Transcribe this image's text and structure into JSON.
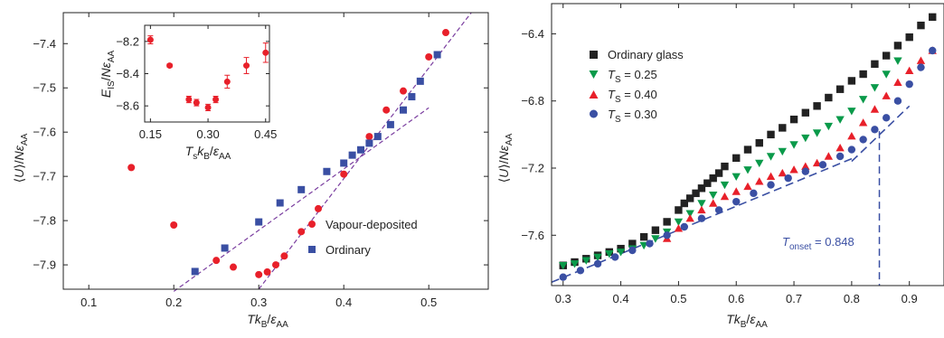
{
  "chart_data": [
    {
      "type": "scatter",
      "xlabel": "Tk_B/ε_AA",
      "ylabel": "⟨U⟩/Nε_AA",
      "xlim": [
        0.07,
        0.57
      ],
      "ylim": [
        -7.955,
        -7.33
      ],
      "xticks": [
        "0.1",
        "0.2",
        "0.3",
        "0.4",
        "0.5"
      ],
      "yticks": [
        "-7.4",
        "-7.5",
        "-7.6",
        "-7.7",
        "-7.8",
        "-7.9"
      ],
      "legend_position": "lower-right",
      "series": [
        {
          "name": "Vapour-deposited",
          "marker": "circle",
          "color": "#e8202a",
          "x": [
            0.15,
            0.2,
            0.25,
            0.27,
            0.3,
            0.31,
            0.32,
            0.33,
            0.35,
            0.37,
            0.4,
            0.43,
            0.45,
            0.47,
            0.5,
            0.52
          ],
          "y": [
            -7.68,
            -7.81,
            -7.89,
            -7.905,
            -7.922,
            -7.916,
            -7.9,
            -7.88,
            -7.825,
            -7.773,
            -7.695,
            -7.61,
            -7.55,
            -7.507,
            -7.43,
            -7.375
          ]
        },
        {
          "name": "Ordinary",
          "marker": "square",
          "color": "#3a4fa3",
          "x": [
            0.225,
            0.26,
            0.3,
            0.325,
            0.35,
            0.38,
            0.4,
            0.41,
            0.42,
            0.43,
            0.44,
            0.455,
            0.47,
            0.48,
            0.49,
            0.51
          ],
          "y": [
            -7.915,
            -7.862,
            -7.803,
            -7.76,
            -7.73,
            -7.689,
            -7.67,
            -7.652,
            -7.64,
            -7.625,
            -7.61,
            -7.583,
            -7.55,
            -7.52,
            -7.485,
            -7.425
          ]
        }
      ],
      "fit_lines": [
        {
          "x": [
            0.2,
            0.5
          ],
          "y": [
            -7.96,
            -7.545
          ],
          "color": "#7b3fa0"
        },
        {
          "x": [
            0.3,
            0.55
          ],
          "y": [
            -7.955,
            -7.33
          ],
          "color": "#7b3fa0"
        }
      ],
      "inset": {
        "type": "scatter",
        "xlabel": "T_s k_B/ε_AA",
        "ylabel": "E_IS/Nε_AA",
        "xlim": [
          0.135,
          0.46
        ],
        "ylim": [
          -8.7,
          -8.1
        ],
        "xticks": [
          "0.15",
          "0.30",
          "0.45"
        ],
        "yticks": [
          "-8.2",
          "-8.4",
          "-8.6"
        ],
        "series": [
          {
            "marker": "circle",
            "color": "#e8202a",
            "x": [
              0.15,
              0.2,
              0.25,
              0.27,
              0.3,
              0.32,
              0.35,
              0.4,
              0.45
            ],
            "y": [
              -8.19,
              -8.35,
              -8.56,
              -8.58,
              -8.61,
              -8.56,
              -8.45,
              -8.35,
              -8.27
            ],
            "err": [
              0.025,
              0.01,
              0.02,
              0.02,
              0.02,
              0.02,
              0.04,
              0.05,
              0.06
            ]
          }
        ]
      }
    },
    {
      "type": "scatter",
      "xlabel": "Tk_B/ε_AA",
      "ylabel": "⟨U⟩/Nε_AA",
      "xlim": [
        0.28,
        0.96
      ],
      "ylim": [
        -7.9,
        -6.22
      ],
      "xticks": [
        "0.3",
        "0.4",
        "0.5",
        "0.6",
        "0.7",
        "0.8",
        "0.9"
      ],
      "yticks": [
        "-6.4",
        "-6.8",
        "-7.2",
        "-7.6"
      ],
      "legend_position": "upper-left",
      "series": [
        {
          "name": "Ordinary glass",
          "marker": "square",
          "color": "#222222",
          "x": [
            0.3,
            0.32,
            0.34,
            0.36,
            0.38,
            0.4,
            0.42,
            0.44,
            0.46,
            0.48,
            0.5,
            0.51,
            0.52,
            0.53,
            0.54,
            0.55,
            0.56,
            0.57,
            0.58,
            0.6,
            0.62,
            0.64,
            0.66,
            0.68,
            0.7,
            0.72,
            0.74,
            0.76,
            0.78,
            0.8,
            0.82,
            0.84,
            0.86,
            0.88,
            0.9,
            0.92,
            0.94,
            0.96
          ],
          "y": [
            -7.78,
            -7.76,
            -7.74,
            -7.72,
            -7.7,
            -7.68,
            -7.65,
            -7.61,
            -7.57,
            -7.52,
            -7.45,
            -7.41,
            -7.38,
            -7.35,
            -7.32,
            -7.29,
            -7.26,
            -7.23,
            -7.19,
            -7.14,
            -7.09,
            -7.05,
            -7.0,
            -6.96,
            -6.91,
            -6.87,
            -6.83,
            -6.78,
            -6.73,
            -6.68,
            -6.64,
            -6.58,
            -6.53,
            -6.47,
            -6.42,
            -6.35,
            -6.3,
            -6.25
          ]
        },
        {
          "name": "T_S = 0.25",
          "marker": "triangle-down",
          "color": "#0a9a4a",
          "x": [
            0.3,
            0.32,
            0.34,
            0.36,
            0.38,
            0.4,
            0.42,
            0.44,
            0.46,
            0.48,
            0.5,
            0.52,
            0.54,
            0.56,
            0.58,
            0.6,
            0.62,
            0.64,
            0.66,
            0.68,
            0.7,
            0.72,
            0.74,
            0.76,
            0.78,
            0.8,
            0.82,
            0.84,
            0.86,
            0.88
          ],
          "y": [
            -7.78,
            -7.77,
            -7.75,
            -7.73,
            -7.71,
            -7.7,
            -7.68,
            -7.66,
            -7.62,
            -7.58,
            -7.52,
            -7.47,
            -7.41,
            -7.36,
            -7.3,
            -7.25,
            -7.21,
            -7.17,
            -7.13,
            -7.1,
            -7.06,
            -7.02,
            -6.99,
            -6.95,
            -6.91,
            -6.86,
            -6.79,
            -6.72,
            -6.64,
            -6.56
          ]
        },
        {
          "name": "T_S = 0.40",
          "marker": "triangle-up",
          "color": "#e8202a",
          "x": [
            0.48,
            0.5,
            0.52,
            0.54,
            0.56,
            0.58,
            0.6,
            0.62,
            0.64,
            0.66,
            0.68,
            0.7,
            0.72,
            0.74,
            0.76,
            0.78,
            0.8,
            0.82,
            0.84,
            0.86,
            0.88,
            0.9,
            0.92,
            0.94,
            0.96
          ],
          "y": [
            -7.62,
            -7.56,
            -7.5,
            -7.45,
            -7.41,
            -7.37,
            -7.34,
            -7.31,
            -7.28,
            -7.25,
            -7.23,
            -7.21,
            -7.19,
            -7.17,
            -7.13,
            -7.08,
            -7.01,
            -6.93,
            -6.85,
            -6.77,
            -6.69,
            -6.62,
            -6.56,
            -6.5,
            -6.44
          ]
        },
        {
          "name": "T_S = 0.30",
          "marker": "circle",
          "color": "#3a4fa3",
          "x": [
            0.3,
            0.33,
            0.36,
            0.39,
            0.42,
            0.45,
            0.48,
            0.51,
            0.54,
            0.57,
            0.6,
            0.63,
            0.66,
            0.69,
            0.72,
            0.75,
            0.78,
            0.8,
            0.82,
            0.84,
            0.86,
            0.88,
            0.9,
            0.92,
            0.94,
            0.96
          ],
          "y": [
            -7.85,
            -7.81,
            -7.77,
            -7.73,
            -7.69,
            -7.65,
            -7.6,
            -7.55,
            -7.5,
            -7.45,
            -7.4,
            -7.35,
            -7.3,
            -7.26,
            -7.22,
            -7.18,
            -7.13,
            -7.09,
            -7.03,
            -6.97,
            -6.9,
            -6.8,
            -6.7,
            -6.6,
            -6.5,
            -6.42
          ]
        }
      ],
      "fit_lines": [
        {
          "x": [
            0.28,
            0.81
          ],
          "y": [
            -7.88,
            -7.13
          ],
          "color": "#3a4fa3",
          "dashed": true
        },
        {
          "x": [
            0.8,
            0.9
          ],
          "y": [
            -7.16,
            -6.83
          ],
          "color": "#3a4fa3",
          "dashed": true
        }
      ],
      "annotation": {
        "text_main": "T",
        "text_sub": "onset",
        "text_value": " = 0.848",
        "x": 0.848,
        "color": "#3a4fa3"
      }
    }
  ]
}
